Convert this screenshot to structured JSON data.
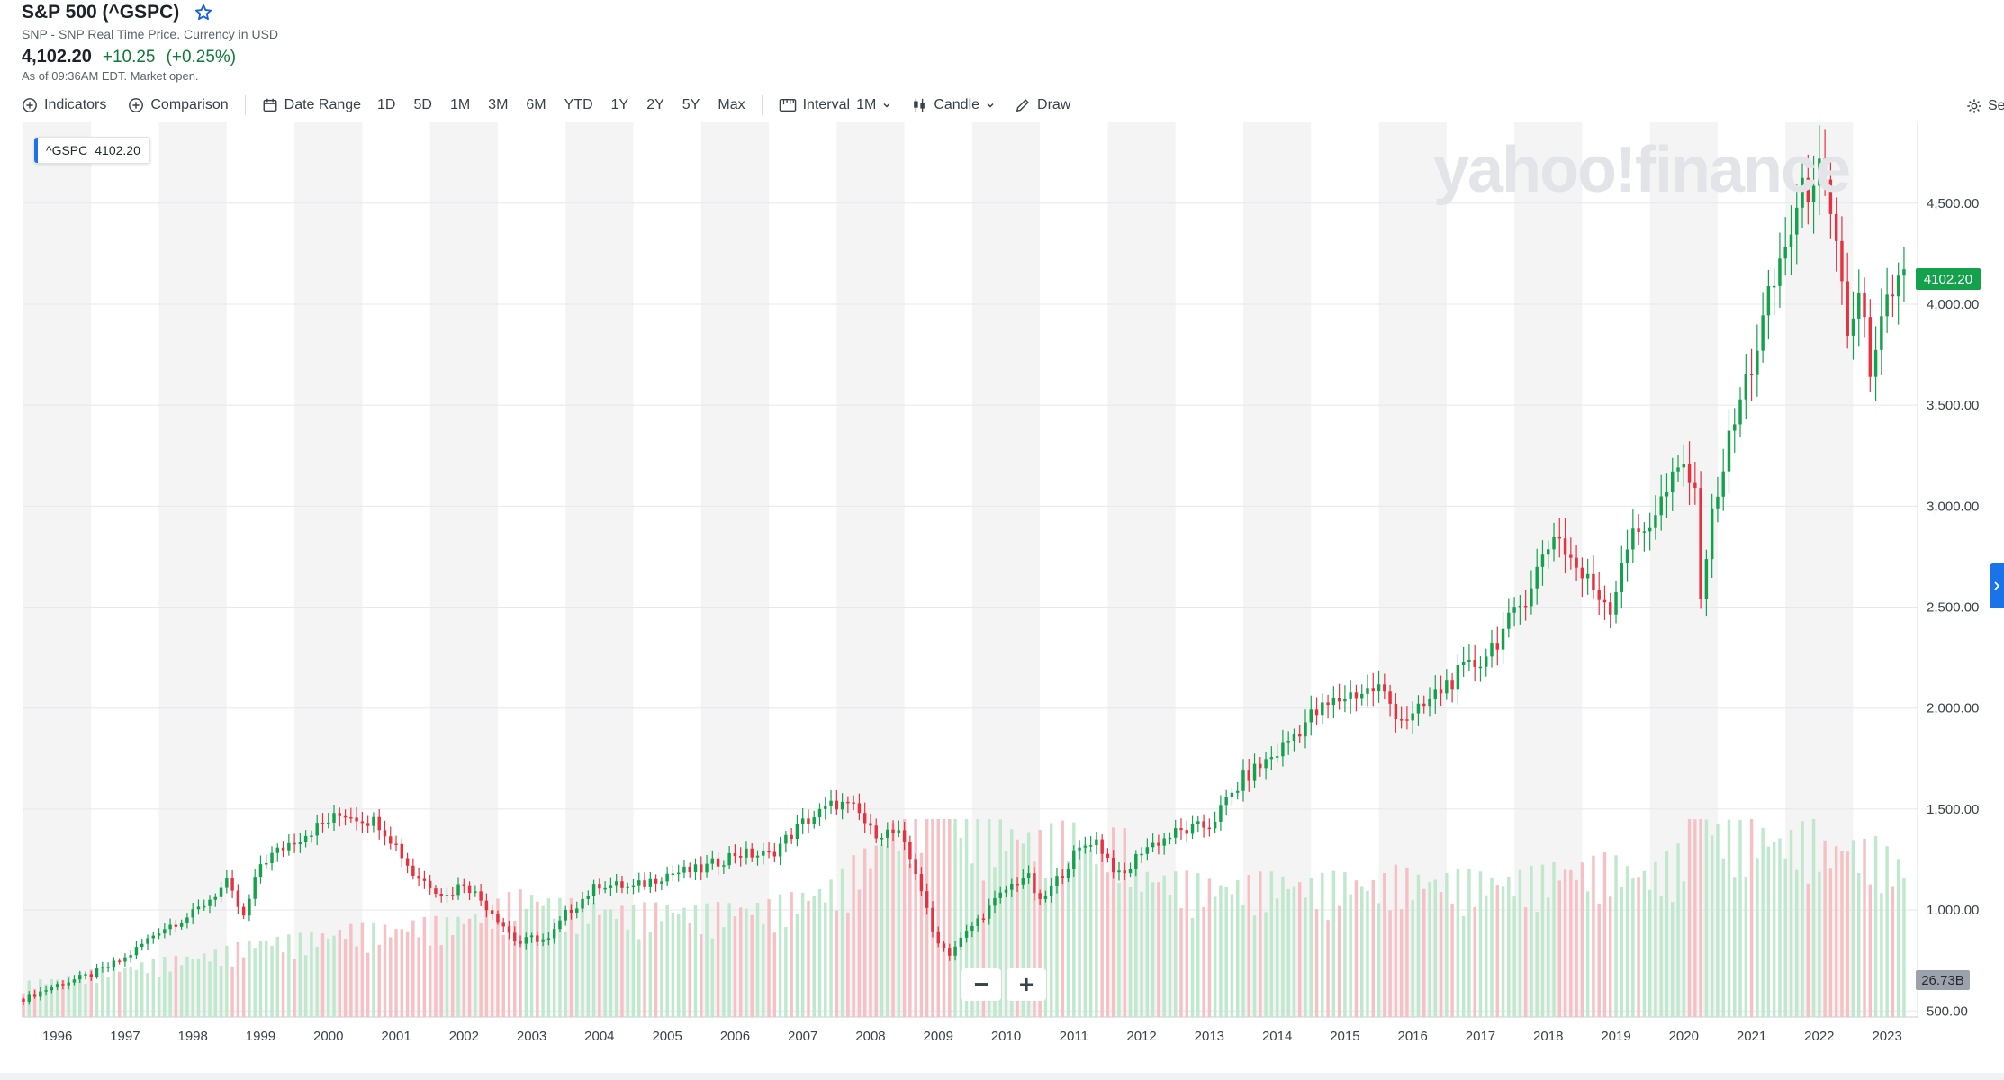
{
  "header": {
    "title": "S&P 500 (^GSPC)",
    "subtitle": "SNP - SNP Real Time Price. Currency in USD",
    "price": "4,102.20",
    "change": "+10.25",
    "change_pct": "(+0.25%)",
    "as_of": "As of 09:36AM EDT. Market open."
  },
  "toolbar": {
    "indicators": "Indicators",
    "comparison": "Comparison",
    "date_range": "Date Range",
    "ranges": [
      "1D",
      "5D",
      "1M",
      "3M",
      "6M",
      "YTD",
      "1Y",
      "2Y",
      "5Y",
      "Max"
    ],
    "interval_label": "Interval",
    "interval_value": "1M",
    "chart_type": "Candle",
    "draw": "Draw",
    "settings": "Se"
  },
  "legend": {
    "symbol": "^GSPC",
    "value": "4102.20"
  },
  "price_tag": "4102.20",
  "volume_tag": "26.73B",
  "watermark": "yahoo!finance",
  "zoom": {
    "minus": "−",
    "plus": "+"
  },
  "colors": {
    "up": "#14a14b",
    "down": "#e8313f",
    "vol_up": "#bfe8cd",
    "vol_down": "#f6c1c4",
    "band": "#f4f4f4",
    "accent": "#1a73e8"
  },
  "chart_data": {
    "type": "candlestick",
    "interval": "1M",
    "y_axis_ticks": [
      "4,500.00",
      "4,000.00",
      "3,500.00",
      "3,000.00",
      "2,500.00",
      "2,000.00",
      "1,500.00",
      "1,000.00",
      "500.00"
    ],
    "y_tick_values": [
      4500,
      4000,
      3500,
      3000,
      2500,
      2000,
      1500,
      1000,
      500
    ],
    "ylim": [
      470,
      4900
    ],
    "x_axis_ticks": [
      "1996",
      "1997",
      "1998",
      "1999",
      "2000",
      "2001",
      "2002",
      "2003",
      "2004",
      "2005",
      "2006",
      "2007",
      "2008",
      "2009",
      "2010",
      "2011",
      "2012",
      "2013",
      "2014",
      "2015",
      "2016",
      "2017",
      "2018",
      "2019",
      "2020",
      "2021",
      "2022",
      "2023"
    ],
    "x_range": [
      1995.5,
      2023.45
    ],
    "shaded_years": true,
    "grid": true,
    "price_series": {
      "x": [
        1995.5,
        1996,
        1996.5,
        1997,
        1997.5,
        1998,
        1998.5,
        1998.75,
        1999,
        1999.5,
        2000,
        2000.25,
        2000.75,
        2001,
        2001.25,
        2001.75,
        2002,
        2002.5,
        2002.8,
        2003,
        2003.25,
        2003.5,
        2004,
        2004.5,
        2005,
        2005.5,
        2006,
        2006.5,
        2007,
        2007.5,
        2007.8,
        2008,
        2008.4,
        2008.7,
        2008.9,
        2009.15,
        2009.5,
        2010,
        2010.3,
        2010.5,
        2011,
        2011.3,
        2011.7,
        2012,
        2012.5,
        2013,
        2013.5,
        2014,
        2014.5,
        2015,
        2015.5,
        2015.8,
        2016,
        2016.5,
        2017,
        2017.5,
        2018,
        2018.05,
        2018.5,
        2018.95,
        2019.1,
        2019.5,
        2020,
        2020.15,
        2020.25,
        2020.5,
        2020.9,
        2021,
        2021.5,
        2021.95,
        2022.1,
        2022.3,
        2022.45,
        2022.6,
        2022.75,
        2022.9,
        2023.1,
        2023.3
      ],
      "close": [
        560,
        630,
        680,
        760,
        900,
        980,
        1130,
        960,
        1230,
        1350,
        1440,
        1480,
        1430,
        1320,
        1180,
        1070,
        1140,
        960,
        830,
        860,
        850,
        980,
        1130,
        1110,
        1180,
        1200,
        1280,
        1270,
        1430,
        1530,
        1490,
        1390,
        1380,
        1170,
        900,
        780,
        920,
        1100,
        1180,
        1030,
        1270,
        1360,
        1150,
        1300,
        1380,
        1420,
        1650,
        1780,
        1960,
        2060,
        2100,
        1960,
        1950,
        2120,
        2240,
        2450,
        2800,
        2900,
        2650,
        2500,
        2780,
        2930,
        3200,
        3100,
        2600,
        3100,
        3600,
        3700,
        4300,
        4700,
        4500,
        4130,
        3800,
        4130,
        3600,
        3860,
        4080,
        4102
      ],
      "volume_b": [
        6,
        7,
        8,
        9,
        10,
        11,
        12,
        13,
        14,
        14,
        15,
        16,
        16,
        16,
        17,
        17,
        18,
        20,
        22,
        22,
        21,
        20,
        20,
        19,
        20,
        19,
        20,
        20,
        22,
        24,
        28,
        30,
        35,
        37,
        45,
        38,
        34,
        34,
        33,
        32,
        34,
        30,
        33,
        26,
        25,
        24,
        24,
        25,
        24,
        25,
        24,
        26,
        25,
        25,
        25,
        25,
        26,
        27,
        27,
        28,
        27,
        26,
        30,
        40,
        38,
        34,
        33,
        34,
        32,
        34,
        30,
        31,
        32,
        30,
        31,
        30,
        28,
        27
      ]
    }
  }
}
